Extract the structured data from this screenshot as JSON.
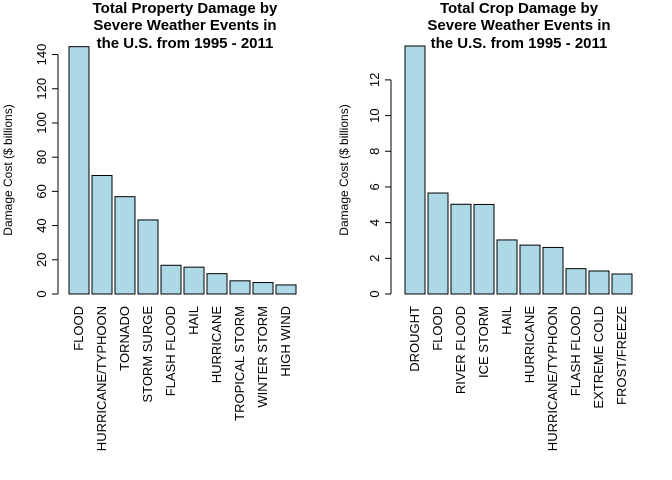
{
  "chart_data": [
    {
      "type": "bar",
      "title_lines": [
        "Total Property Damage by",
        "Severe Weather Events in",
        "the U.S. from 1995 - 2011"
      ],
      "xlabel": "",
      "ylabel": "Damage Cost ($ billions)",
      "ylim": [
        0,
        145
      ],
      "yticks": [
        0,
        20,
        40,
        60,
        80,
        100,
        120,
        140
      ],
      "grid": false,
      "bar_color": "#add8e6",
      "categories": [
        "FLOOD",
        "HURRICANE/TYPHOON",
        "TORNADO",
        "STORM SURGE",
        "FLASH FLOOD",
        "HAIL",
        "HURRICANE",
        "TROPICAL STORM",
        "WINTER STORM",
        "HIGH WIND"
      ],
      "values": [
        144.6,
        69.3,
        56.9,
        43.3,
        16.8,
        15.7,
        11.9,
        7.7,
        6.7,
        5.3
      ]
    },
    {
      "type": "bar",
      "title_lines": [
        "Total Crop Damage by",
        "Severe Weather Events in",
        "the U.S. from 1995 - 2011"
      ],
      "xlabel": "",
      "ylabel": "Damage Cost ($ billions)",
      "ylim": [
        0,
        13.9
      ],
      "yticks": [
        0,
        2,
        4,
        6,
        8,
        10,
        12
      ],
      "grid": false,
      "bar_color": "#add8e6",
      "categories": [
        "DROUGHT",
        "FLOOD",
        "RIVER FLOOD",
        "ICE STORM",
        "HAIL",
        "HURRICANE",
        "HURRICANE/TYPHOON",
        "FLASH FLOOD",
        "EXTREME COLD",
        "FROST/FREEZE"
      ],
      "values": [
        13.9,
        5.66,
        5.03,
        5.02,
        3.03,
        2.74,
        2.61,
        1.42,
        1.29,
        1.12
      ]
    }
  ]
}
